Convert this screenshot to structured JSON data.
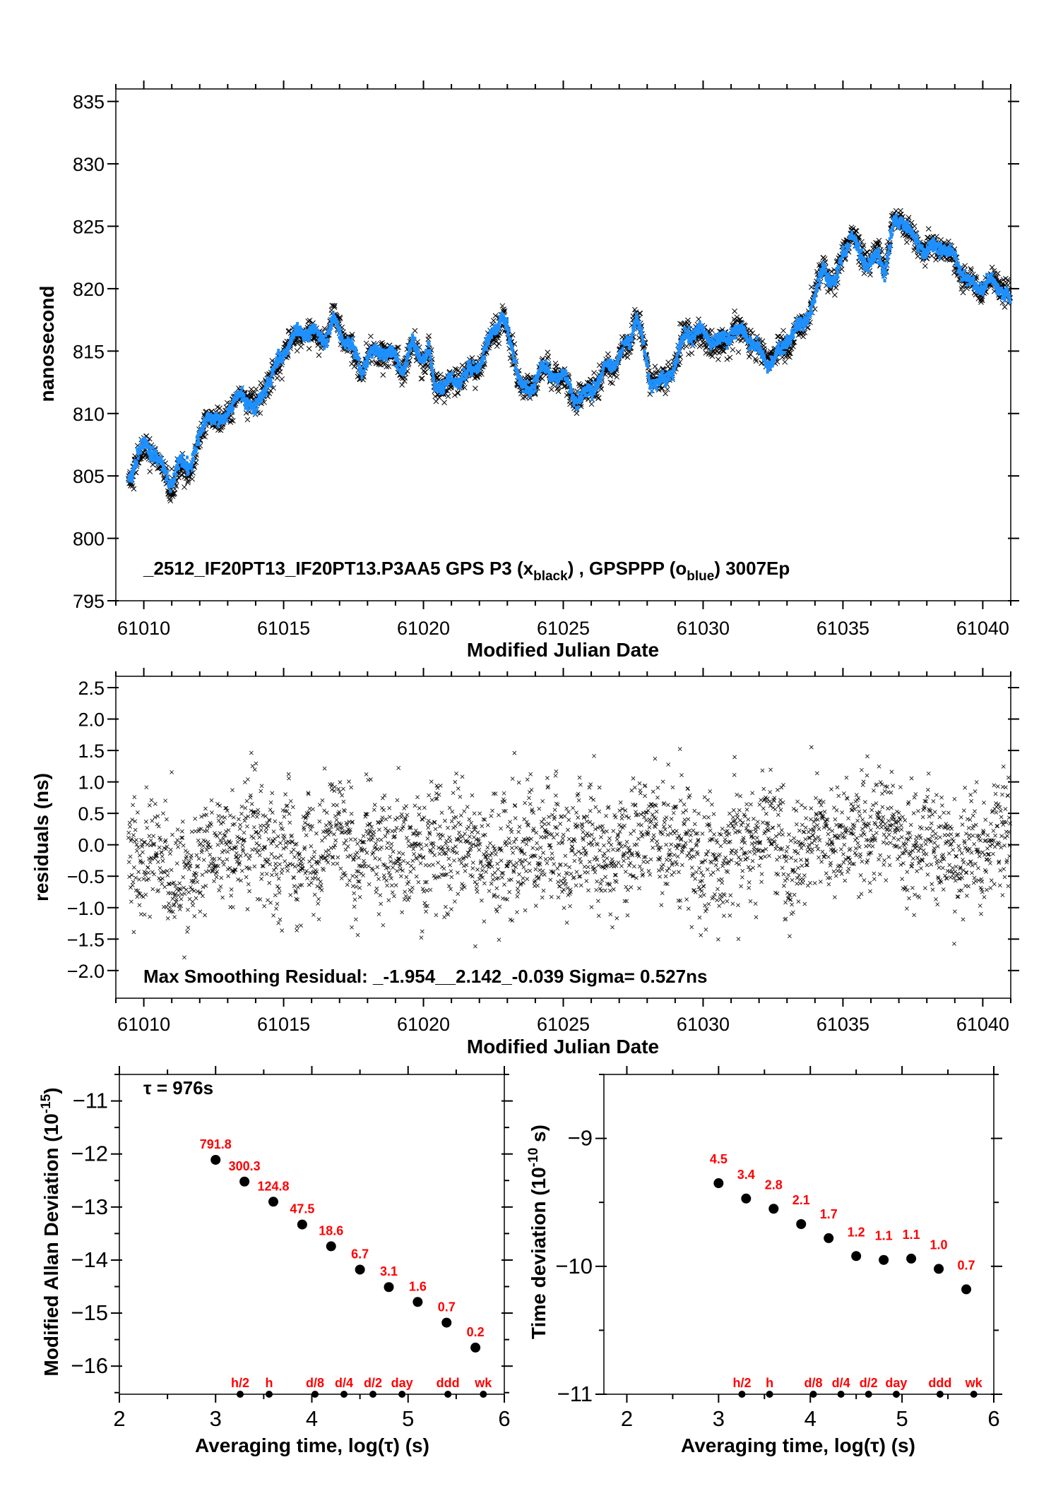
{
  "chart_data": [
    {
      "id": "timeseries",
      "type": "scatter",
      "xlabel": "Modified Julian Date",
      "ylabel": "nanosecond",
      "xlim": [
        61009,
        61041
      ],
      "ylim": [
        795,
        836
      ],
      "xticks": [
        61010,
        61015,
        61020,
        61025,
        61030,
        61035,
        61040
      ],
      "yticks": [
        795,
        800,
        805,
        810,
        815,
        820,
        825,
        830,
        835
      ],
      "annotation": {
        "main": "_2512_IF20PT13_IF20PT13.P3AA5     GPS P3 (x",
        "sub1": "black",
        "mid": ") ,  GPSPPP (o",
        "sub2": "blue",
        "end": ")  3007Ep"
      },
      "sampling_s": 976,
      "series": [
        {
          "name": "GPS P3",
          "marker": "x",
          "color": "#000000"
        },
        {
          "name": "GPSPPP",
          "marker": "o",
          "color": "#1e90ff",
          "x": [
            61009.0,
            61009.5,
            61010,
            61010.3,
            61010.7,
            61011,
            61011.3,
            61011.7,
            61012,
            61012.3,
            61012.7,
            61013,
            61013.5,
            61013.8,
            61014,
            61014.3,
            61014.7,
            61015,
            61015.5,
            61016,
            61016.5,
            61016.8,
            61017,
            61017.5,
            61017.8,
            61018,
            61018.5,
            61019,
            61019.3,
            61019.6,
            61020,
            61020.2,
            61020.4,
            61020.8,
            61021.5,
            61022,
            61022.4,
            61022.8,
            61023,
            61023.5,
            61023.8,
            61024.2,
            61024.5,
            61025,
            61025.5,
            61026,
            61026.5,
            61027,
            61027.4,
            61027.6,
            61027.9,
            61028.1,
            61028.6,
            61029,
            61029.4,
            61030,
            61030.5,
            61031,
            61031.5,
            61032,
            61032.3,
            61032.8,
            61033,
            61033.5,
            61034,
            61034.3,
            61034.7,
            61035,
            61035.3,
            61035.7,
            61036,
            61036.3,
            61036.5,
            61036.8,
            61037.2,
            61037.5,
            61038,
            61038.5,
            61039,
            61039.5,
            61039.8,
            61040.3,
            61040.7,
            61041
          ],
          "y": [
            804.5,
            805,
            807.5,
            807,
            805.5,
            804.5,
            806,
            806,
            808,
            810,
            809,
            810.5,
            811.5,
            811,
            810,
            812,
            813.5,
            815,
            816.5,
            816.5,
            816,
            817.5,
            816.5,
            815,
            813.5,
            814.5,
            815,
            814.5,
            813.5,
            815.5,
            814.5,
            815,
            812,
            812.5,
            813,
            814,
            816,
            818,
            816.5,
            812.5,
            811.5,
            814,
            813,
            813,
            811,
            812,
            813.5,
            814.5,
            816,
            818,
            815,
            812.5,
            812.5,
            814,
            816.5,
            816.5,
            815.5,
            816.5,
            816.5,
            815,
            814,
            815,
            816,
            817,
            819,
            822,
            820,
            823,
            824,
            822.5,
            822,
            822.5,
            821.5,
            825,
            825.5,
            824,
            823,
            823.5,
            822.5,
            820.5,
            820,
            820.5,
            820,
            819
          ]
        }
      ]
    },
    {
      "id": "residuals",
      "type": "scatter",
      "xlabel": "Modified Julian Date",
      "ylabel": "residuals (ns)",
      "xlim": [
        61009,
        61041
      ],
      "ylim": [
        -2.44,
        2.68
      ],
      "xticks": [
        61010,
        61015,
        61020,
        61025,
        61030,
        61035,
        61040
      ],
      "yticks": [
        -2.0,
        -1.5,
        -1.0,
        -0.5,
        0.0,
        0.5,
        1.0,
        1.5,
        2.0,
        2.5
      ],
      "ytick_labels": [
        "−2.0",
        "−1.5",
        "−1.0",
        "−0.5",
        "0.0",
        "0.5",
        "1.0",
        "1.5",
        "2.0",
        "2.5"
      ],
      "annotation": "Max Smoothing Residual: _-1.954__2.142_-0.039  Sigma= 0.527ns",
      "min": -1.954,
      "max": 2.142,
      "mean": -0.039,
      "sigma": 0.527,
      "marker": "x",
      "color": "#000000"
    },
    {
      "id": "mdev",
      "type": "scatter",
      "xlabel": "Averaging time, log(τ) (s)",
      "ylabel": {
        "main": "Modified Allan Deviation (10",
        "sup": "-15",
        "end": ")"
      },
      "xlim": [
        2,
        6
      ],
      "ylim": [
        -16.53,
        -10.5
      ],
      "xticks": [
        2,
        3,
        4,
        5,
        6
      ],
      "yticks": [
        -11,
        -12,
        -13,
        -14,
        -15,
        -16
      ],
      "ytick_labels": [
        "−11",
        "−12",
        "−13",
        "−14",
        "−15",
        "−16"
      ],
      "tau_label": "τ = 976s",
      "x": [
        3.0,
        3.3,
        3.6,
        3.9,
        4.2,
        4.5,
        4.8,
        5.1,
        5.4,
        5.7
      ],
      "y": [
        -12.11,
        -12.52,
        -12.9,
        -13.33,
        -13.74,
        -14.18,
        -14.51,
        -14.79,
        -15.18,
        -15.65
      ],
      "point_labels": [
        "791.8",
        "300.3",
        "124.8",
        "47.5",
        "18.6",
        "6.7",
        "3.1",
        "1.6",
        "0.7",
        "0.2"
      ],
      "markers": {
        "x": [
          3.255,
          3.556,
          4.033,
          4.334,
          4.635,
          4.937,
          5.414,
          5.782
        ],
        "labels": [
          "h/2",
          "h",
          "d/8",
          "d/4",
          "d/2",
          "day",
          "ddd",
          "wk"
        ]
      },
      "label_color": "#ff0000"
    },
    {
      "id": "tdev",
      "type": "scatter",
      "xlabel": "Averaging time, log(τ) (s)",
      "ylabel": {
        "main": "Time deviation (10",
        "sup": "-10",
        "end": " s)"
      },
      "xlim": [
        1.75,
        6
      ],
      "ylim": [
        -11,
        -8.5
      ],
      "xticks": [
        2,
        3,
        4,
        5,
        6
      ],
      "yticks": [
        -9,
        -10,
        -11
      ],
      "ytick_labels": [
        "−9",
        "−10",
        "−11"
      ],
      "x": [
        3.0,
        3.3,
        3.6,
        3.9,
        4.2,
        4.5,
        4.8,
        5.1,
        5.4,
        5.7
      ],
      "y": [
        -9.35,
        -9.47,
        -9.55,
        -9.67,
        -9.78,
        -9.92,
        -9.95,
        -9.94,
        -10.02,
        -10.18
      ],
      "point_labels": [
        "4.5",
        "3.4",
        "2.8",
        "2.1",
        "1.7",
        "1.2",
        "1.1",
        "1.1",
        "1.0",
        "0.7"
      ],
      "markers": {
        "x": [
          3.255,
          3.556,
          4.033,
          4.334,
          4.635,
          4.937,
          5.414,
          5.782
        ],
        "labels": [
          "h/2",
          "h",
          "d/8",
          "d/4",
          "d/2",
          "day",
          "ddd",
          "wk"
        ]
      },
      "label_color": "#ff0000"
    }
  ]
}
